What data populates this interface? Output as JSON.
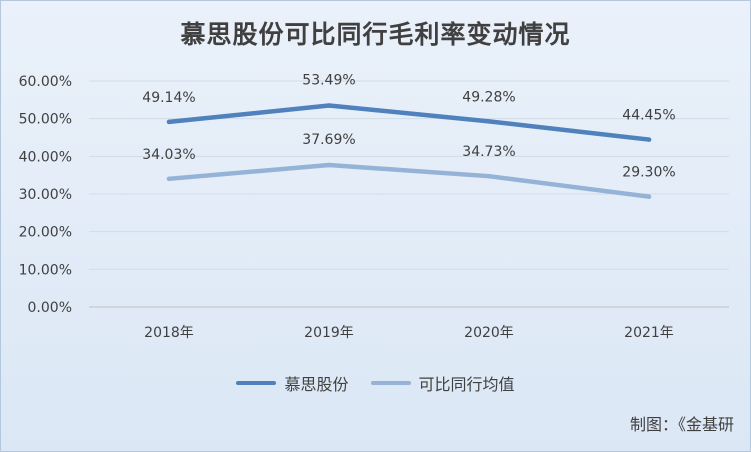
{
  "chart_data": {
    "type": "line",
    "title": "慕思股份可比同行毛利率变动情况",
    "categories": [
      "2018年",
      "2019年",
      "2020年",
      "2021年"
    ],
    "series": [
      {
        "name": "慕思股份",
        "color": "#4f81bd",
        "values": [
          49.14,
          53.49,
          49.28,
          44.45
        ],
        "labels": [
          "49.14%",
          "53.49%",
          "49.28%",
          "44.45%"
        ]
      },
      {
        "name": "可比同行均值",
        "color": "#95b3d7",
        "values": [
          34.03,
          37.69,
          34.73,
          29.3
        ],
        "labels": [
          "34.03%",
          "37.69%",
          "34.73%",
          "29.30%"
        ]
      }
    ],
    "y_ticks": [
      "0.00%",
      "10.00%",
      "20.00%",
      "30.00%",
      "40.00%",
      "50.00%",
      "60.00%"
    ],
    "ylim": [
      0,
      60
    ],
    "grid": true,
    "legend_position": "bottom"
  },
  "source_note": "制图：《金基研"
}
